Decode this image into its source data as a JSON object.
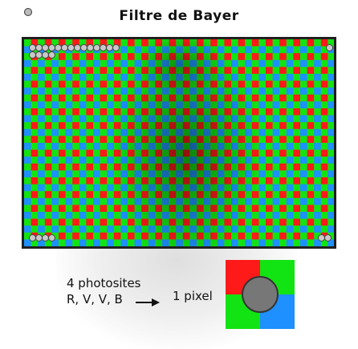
{
  "title": "Filtre de Bayer",
  "caption": {
    "line1": "4 photosites",
    "line2": "R, V, V, B"
  },
  "result_label": "1 pixel",
  "colors": {
    "red": "#ff1a1a",
    "green": "#12e312",
    "blue": "#1e90ff",
    "pixel_circle": "#777777"
  },
  "icons": [
    "corner-ring-icon",
    "arrow-right-icon",
    "pixel-circle-icon"
  ]
}
